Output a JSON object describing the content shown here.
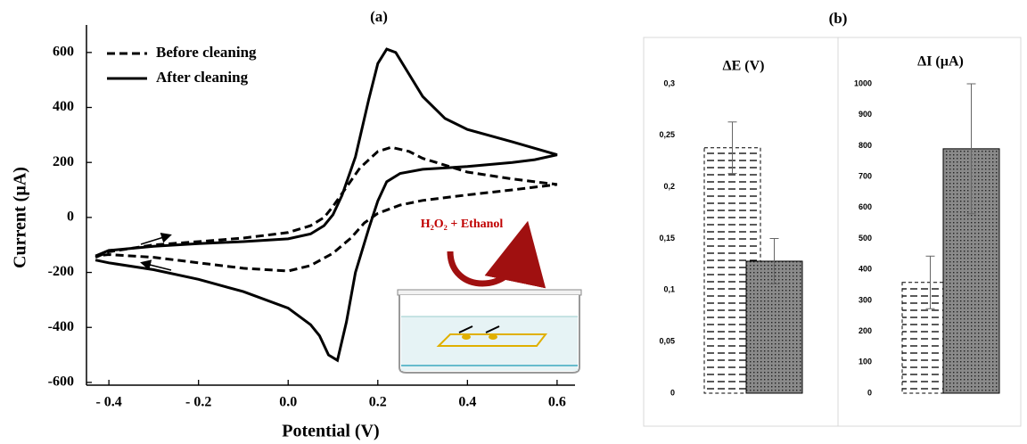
{
  "chart_data": [
    {
      "type": "line",
      "title": "(a)",
      "xlabel": "Potential (V)",
      "ylabel": "Current (µA)",
      "xlim": [
        -0.45,
        0.64
      ],
      "ylim": [
        -610,
        700
      ],
      "xticks": [
        {
          "value": -0.4,
          "label": "- 0.4"
        },
        {
          "value": -0.2,
          "label": "- 0.2"
        },
        {
          "value": 0,
          "label": "0.0"
        },
        0.2,
        0.4,
        0.6
      ],
      "yticks": [
        -600,
        -400,
        -200,
        0,
        200,
        400,
        600
      ],
      "legend": "upper left",
      "annotation": "H₂O₂ + Ethanol",
      "annotation_color": "#c00000",
      "series": [
        {
          "name": "Before cleaning",
          "color": "#000000",
          "line_style": "dashed",
          "x": [
            -0.43,
            -0.4,
            -0.3,
            -0.2,
            -0.1,
            0.0,
            0.05,
            0.08,
            0.1,
            0.13,
            0.16,
            0.2,
            0.23,
            0.27,
            0.3,
            0.4,
            0.5,
            0.6,
            0.5,
            0.4,
            0.3,
            0.25,
            0.2,
            0.17,
            0.14,
            0.1,
            0.05,
            0.0,
            -0.1,
            -0.2,
            -0.3,
            -0.4,
            -0.43
          ],
          "values": [
            -145,
            -125,
            -100,
            -88,
            -75,
            -55,
            -30,
            0,
            40,
            110,
            180,
            240,
            255,
            240,
            215,
            165,
            140,
            120,
            100,
            82,
            62,
            45,
            15,
            -20,
            -75,
            -130,
            -175,
            -195,
            -185,
            -165,
            -145,
            -135,
            -140
          ]
        },
        {
          "name": "After cleaning",
          "color": "#000000",
          "line_style": "solid",
          "x": [
            -0.43,
            -0.4,
            -0.3,
            -0.2,
            -0.1,
            0.0,
            0.05,
            0.08,
            0.1,
            0.12,
            0.15,
            0.18,
            0.2,
            0.22,
            0.24,
            0.27,
            0.3,
            0.35,
            0.4,
            0.5,
            0.6,
            0.55,
            0.5,
            0.4,
            0.3,
            0.25,
            0.22,
            0.2,
            0.18,
            0.15,
            0.13,
            0.11,
            0.09,
            0.07,
            0.05,
            0.0,
            -0.1,
            -0.2,
            -0.3,
            -0.4,
            -0.43
          ],
          "values": [
            -140,
            -120,
            -105,
            -95,
            -88,
            -78,
            -60,
            -30,
            10,
            80,
            220,
            430,
            560,
            612,
            600,
            520,
            440,
            360,
            320,
            275,
            228,
            210,
            200,
            185,
            175,
            160,
            130,
            60,
            -40,
            -200,
            -380,
            -520,
            -500,
            -430,
            -390,
            -330,
            -270,
            -225,
            -190,
            -165,
            -155
          ]
        }
      ]
    },
    {
      "type": "bar",
      "title": "ΔE (V)",
      "panel_title": "(b)",
      "ylim": [
        0,
        0.3
      ],
      "yticks": [
        0,
        {
          "value": 0.05,
          "label": "0,05"
        },
        {
          "value": 0.1,
          "label": "0,1"
        },
        {
          "value": 0.15,
          "label": "0,15"
        },
        {
          "value": 0.2,
          "label": "0,2"
        },
        {
          "value": 0.25,
          "label": "0,25"
        },
        {
          "value": 0.3,
          "label": "0,3"
        }
      ],
      "values": [
        0.238,
        0.128
      ],
      "errors": [
        0.025,
        0.022
      ],
      "colors": [
        "#ffffff",
        "#808080"
      ]
    },
    {
      "type": "bar",
      "title": "ΔI (µA)",
      "ylim": [
        0,
        1000
      ],
      "yticks": [
        0,
        100,
        200,
        300,
        400,
        500,
        600,
        700,
        800,
        900,
        1000
      ],
      "values": [
        358,
        790
      ],
      "errors": [
        85,
        210
      ],
      "colors": [
        "#ffffff",
        "#808080"
      ]
    }
  ]
}
